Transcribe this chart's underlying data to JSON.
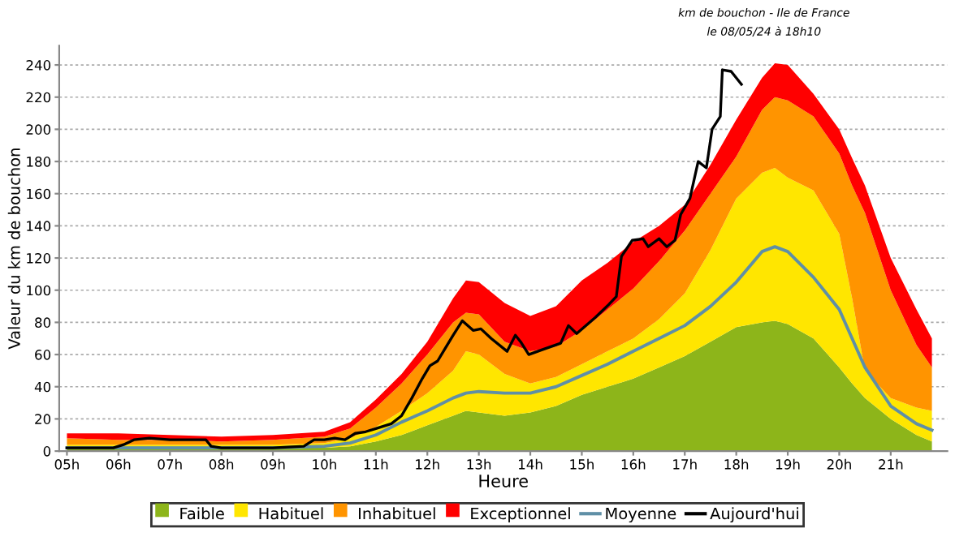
{
  "chart_data": {
    "type": "area",
    "stacked": true,
    "xlabel": "Heure",
    "ylabel": "Valeur du km de bouchon",
    "annotations": [
      "km de bouchon - Ile de France",
      "le 08/05/24 à 18h10"
    ],
    "x": [
      5,
      6,
      7,
      8,
      9,
      10,
      10.5,
      11,
      11.5,
      12,
      12.5,
      12.75,
      13,
      13.5,
      14,
      14.5,
      15,
      15.5,
      16,
      16.5,
      17,
      17.5,
      18,
      18.5,
      18.75,
      19,
      19.5,
      20,
      20.25,
      20.5,
      21,
      21.5,
      21.8
    ],
    "series": [
      {
        "name": "Faible",
        "color": "#8db51a",
        "values": [
          3,
          3,
          3,
          3,
          3,
          2,
          3,
          6,
          10,
          16,
          22,
          25,
          24,
          22,
          24,
          28,
          35,
          40,
          45,
          52,
          59,
          68,
          77,
          80,
          81,
          79,
          70,
          52,
          42,
          33,
          20,
          10,
          6
        ]
      },
      {
        "name": "Habituel",
        "color": "#ffe600",
        "values": [
          1,
          1,
          1,
          1,
          1,
          3,
          5,
          9,
          15,
          20,
          28,
          37,
          36,
          26,
          18,
          18,
          19,
          22,
          25,
          30,
          39,
          57,
          80,
          93,
          95,
          91,
          92,
          83,
          53,
          17,
          13,
          17,
          19
        ]
      },
      {
        "name": "Inhabituel",
        "color": "#ff9400",
        "values": [
          4,
          3,
          3,
          2,
          3,
          4,
          6,
          12,
          17,
          24,
          30,
          24,
          25,
          20,
          20,
          19,
          21,
          26,
          31,
          36,
          39,
          35,
          26,
          39,
          44,
          48,
          46,
          50,
          70,
          98,
          67,
          39,
          27
        ]
      },
      {
        "name": "Exceptionnel",
        "color": "#ff0000",
        "values": [
          3,
          4,
          3,
          3,
          3,
          3,
          4,
          5,
          6,
          8,
          15,
          20,
          20,
          24,
          22,
          25,
          31,
          29,
          29,
          22,
          16,
          18,
          23,
          20,
          21,
          22,
          14,
          15,
          17,
          17,
          20,
          22,
          18
        ]
      },
      {
        "name": "Moyenne",
        "type": "line",
        "color": "#5f8fa6",
        "values": [
          2,
          2,
          2,
          2,
          2,
          3,
          5,
          10,
          18,
          25,
          33,
          36,
          37,
          36,
          36,
          40,
          47,
          54,
          62,
          70,
          78,
          90,
          105,
          124,
          127,
          124,
          108,
          88,
          70,
          52,
          28,
          17,
          13
        ]
      },
      {
        "name": "Aujourd'hui",
        "type": "line",
        "color": "#000000",
        "x": [
          5,
          5.9,
          6.1,
          6.3,
          6.6,
          7,
          7.7,
          7.8,
          8,
          9,
          9.6,
          9.8,
          10,
          10.2,
          10.4,
          10.6,
          10.8,
          11,
          11.3,
          11.5,
          11.7,
          11.9,
          12.05,
          12.2,
          12.35,
          12.5,
          12.68,
          12.89,
          13.04,
          13.24,
          13.55,
          13.71,
          13.81,
          13.97,
          14.23,
          14.59,
          14.74,
          14.9,
          15.26,
          15.52,
          15.67,
          15.77,
          15.98,
          16.19,
          16.29,
          16.5,
          16.65,
          16.81,
          16.92,
          17.1,
          17.26,
          17.42,
          17.53,
          17.69,
          17.73,
          17.9,
          18.1
        ],
        "values": [
          2,
          2,
          4,
          7,
          8,
          7,
          7,
          3,
          2,
          2,
          3,
          7,
          7,
          8,
          7,
          11,
          12,
          14,
          17,
          22,
          33,
          45,
          53,
          56,
          64,
          72,
          81,
          75,
          76,
          70,
          62,
          72,
          68,
          60,
          63,
          67,
          78,
          73,
          83,
          91,
          96,
          121,
          131,
          132,
          127,
          132,
          127,
          131,
          147,
          157,
          180,
          176,
          200,
          208,
          237,
          236,
          228
        ]
      }
    ],
    "xlim": [
      4.85,
      22.1
    ],
    "ylim": [
      0,
      252
    ],
    "xticks": [
      {
        "value": 5,
        "label": "05h"
      },
      {
        "value": 6,
        "label": "06h"
      },
      {
        "value": 7,
        "label": "07h"
      },
      {
        "value": 8,
        "label": "08h"
      },
      {
        "value": 9,
        "label": "09h"
      },
      {
        "value": 10,
        "label": "10h"
      },
      {
        "value": 11,
        "label": "11h"
      },
      {
        "value": 12,
        "label": "12h"
      },
      {
        "value": 13,
        "label": "13h"
      },
      {
        "value": 14,
        "label": "14h"
      },
      {
        "value": 15,
        "label": "15h"
      },
      {
        "value": 16,
        "label": "16h"
      },
      {
        "value": 17,
        "label": "17h"
      },
      {
        "value": 18,
        "label": "18h"
      },
      {
        "value": 19,
        "label": "19h"
      },
      {
        "value": 20,
        "label": "20h"
      },
      {
        "value": 21,
        "label": "21h"
      }
    ],
    "yticks": [
      0,
      20,
      40,
      60,
      80,
      100,
      120,
      140,
      160,
      180,
      200,
      220,
      240
    ],
    "grid": "y",
    "legend": "bottom",
    "line_style": "solid"
  }
}
